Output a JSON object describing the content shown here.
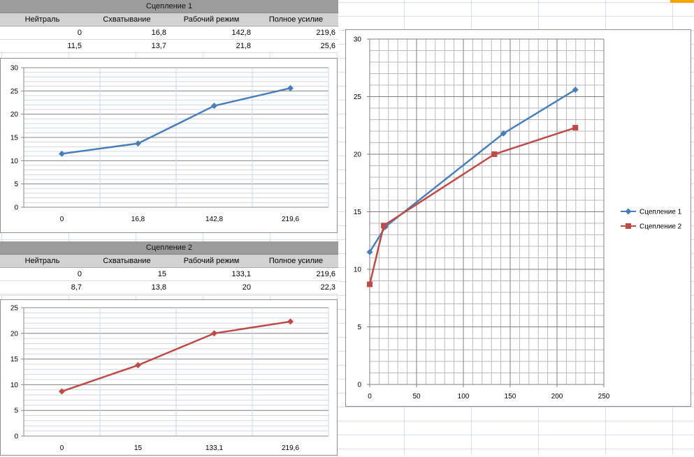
{
  "accent": "#f5a400",
  "table1": {
    "title": "Сцепление 1",
    "headers": [
      "Нейтраль",
      "Схватывание",
      "Рабочий режим",
      "Полное усилие"
    ],
    "x_row": [
      "0",
      "16,8",
      "142,8",
      "219,6"
    ],
    "y_row": [
      "11,5",
      "13,7",
      "21,8",
      "25,6"
    ]
  },
  "table2": {
    "title": "Сцепление 2",
    "headers": [
      "Нейтраль",
      "Схватывание",
      "Рабочий режим",
      "Полное усилие"
    ],
    "x_row": [
      "0",
      "15",
      "133,1",
      "219,6"
    ],
    "y_row": [
      "8,7",
      "13,8",
      "20",
      "22,3"
    ]
  },
  "chart_data": [
    {
      "type": "line",
      "categories": [
        "0",
        "16,8",
        "142,8",
        "219,6"
      ],
      "series": [
        {
          "values": [
            11.5,
            13.7,
            21.8,
            25.6
          ],
          "color": "#4a7ebb",
          "marker": "diamond"
        }
      ],
      "ylim": [
        0,
        30
      ],
      "yticks": [
        0,
        5,
        10,
        15,
        20,
        25,
        30
      ],
      "grid": true,
      "legend": "none"
    },
    {
      "type": "line",
      "categories": [
        "0",
        "15",
        "133,1",
        "219,6"
      ],
      "series": [
        {
          "values": [
            8.7,
            13.8,
            20,
            22.3
          ],
          "color": "#be4b48",
          "marker": "diamond"
        }
      ],
      "ylim": [
        0,
        25
      ],
      "yticks": [
        0,
        5,
        10,
        15,
        20,
        25
      ],
      "grid": true,
      "legend": "none"
    },
    {
      "type": "scatter",
      "xlim": [
        0,
        250
      ],
      "ylim": [
        0,
        30
      ],
      "xticks": [
        0,
        50,
        100,
        150,
        200,
        250
      ],
      "yticks": [
        0,
        5,
        10,
        15,
        20,
        25,
        30
      ],
      "grid": true,
      "legend": "right",
      "series": [
        {
          "name": "Сцепление 1",
          "x": [
            0,
            16.8,
            142.8,
            219.6
          ],
          "y": [
            11.5,
            13.7,
            21.8,
            25.6
          ],
          "color": "#4a7ebb",
          "marker": "diamond"
        },
        {
          "name": "Сцепление 2",
          "x": [
            0,
            15,
            133.1,
            219.6
          ],
          "y": [
            8.7,
            13.8,
            20,
            22.3
          ],
          "color": "#be4b48",
          "marker": "square"
        }
      ]
    }
  ]
}
